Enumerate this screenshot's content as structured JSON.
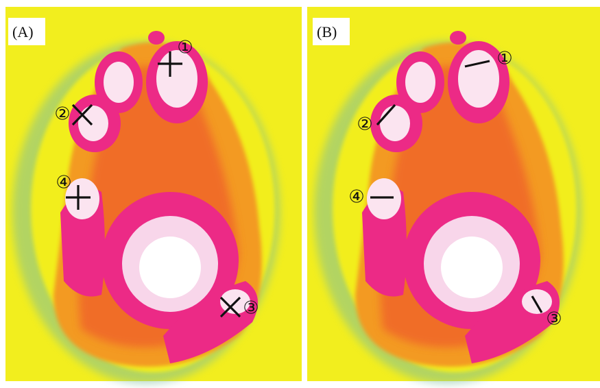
{
  "panels": [
    {
      "label": "(A)",
      "markers": [
        "①",
        "②",
        "③",
        "④"
      ]
    },
    {
      "label": "(B)",
      "markers": [
        "①",
        "②",
        "③",
        "④"
      ]
    }
  ]
}
